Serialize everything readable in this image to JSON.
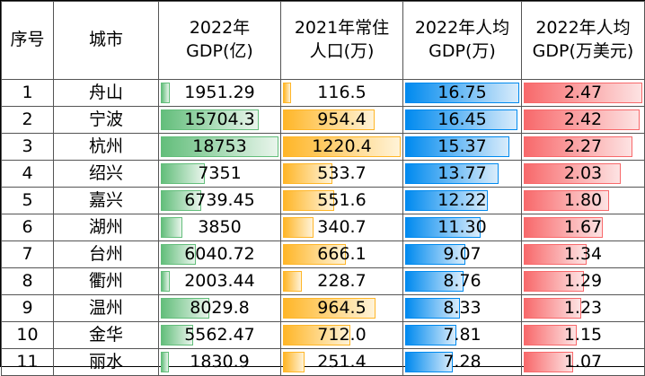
{
  "headers": {
    "idx": "序号",
    "city": "城市",
    "gdp_line1": "2022年",
    "gdp_line2": "GDP(亿)",
    "pop_line1": "2021年常住",
    "pop_line2": "人口(万)",
    "pc_line1": "2022年人均",
    "pc_line2": "GDP(万)",
    "usd_line1": "2022年人均",
    "usd_line2": "GDP(万美元)"
  },
  "colors": {
    "gdp_bar": "#63be7b",
    "pop_bar": "#ffb628",
    "pc_bar": "#008aef",
    "usd_bar": "#f8696b"
  },
  "rows": [
    {
      "idx": "1",
      "city": "舟山",
      "gdp": "1951.29",
      "pop": "116.5",
      "pc": "16.75",
      "usd": "2.47"
    },
    {
      "idx": "2",
      "city": "宁波",
      "gdp": "15704.3",
      "pop": "954.4",
      "pc": "16.45",
      "usd": "2.42"
    },
    {
      "idx": "3",
      "city": "杭州",
      "gdp": "18753",
      "pop": "1220.4",
      "pc": "15.37",
      "usd": "2.27"
    },
    {
      "idx": "4",
      "city": "绍兴",
      "gdp": "7351",
      "pop": "533.7",
      "pc": "13.77",
      "usd": "2.03"
    },
    {
      "idx": "5",
      "city": "嘉兴",
      "gdp": "6739.45",
      "pop": "551.6",
      "pc": "12.22",
      "usd": "1.80"
    },
    {
      "idx": "6",
      "city": "湖州",
      "gdp": "3850",
      "pop": "340.7",
      "pc": "11.30",
      "usd": "1.67"
    },
    {
      "idx": "7",
      "city": "台州",
      "gdp": "6040.72",
      "pop": "666.1",
      "pc": "9.07",
      "usd": "1.34"
    },
    {
      "idx": "8",
      "city": "衢州",
      "gdp": "2003.44",
      "pop": "228.7",
      "pc": "8.76",
      "usd": "1.29"
    },
    {
      "idx": "9",
      "city": "温州",
      "gdp": "8029.8",
      "pop": "964.5",
      "pc": "8.33",
      "usd": "1.23"
    },
    {
      "idx": "10",
      "city": "金华",
      "gdp": "5562.47",
      "pop": "712.0",
      "pc": "7.81",
      "usd": "1.15"
    },
    {
      "idx": "11",
      "city": "丽水",
      "gdp": "1830.9",
      "pop": "251.4",
      "pc": "7.28",
      "usd": "1.07"
    }
  ]
}
